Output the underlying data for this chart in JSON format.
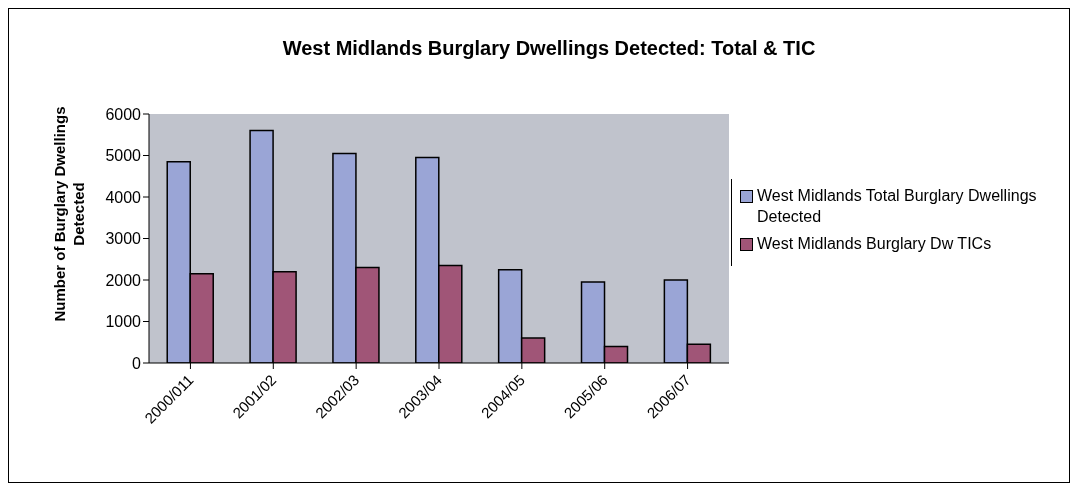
{
  "chart_data": {
    "type": "bar",
    "title": "West Midlands Burglary Dwellings Detected: Total & TIC",
    "ylabel": "Number of Burglary Dwellings Detected",
    "categories": [
      "2000/011",
      "2001/02",
      "2002/03",
      "2003/04",
      "2004/05",
      "2005/06",
      "2006/07"
    ],
    "series": [
      {
        "name": "West Midlands Total Burglary Dwellings Detected",
        "color": "#9aa5d6",
        "values": [
          4850,
          5600,
          5050,
          4950,
          2250,
          1950,
          2000
        ]
      },
      {
        "name": "West Midlands Burglary Dw TICs",
        "color": "#a05577",
        "values": [
          2150,
          2200,
          2300,
          2350,
          600,
          400,
          450
        ]
      }
    ],
    "ylim": [
      0,
      6000
    ],
    "yticks": [
      0,
      1000,
      2000,
      3000,
      4000,
      5000,
      6000
    ],
    "grid": false,
    "legend": "right"
  }
}
